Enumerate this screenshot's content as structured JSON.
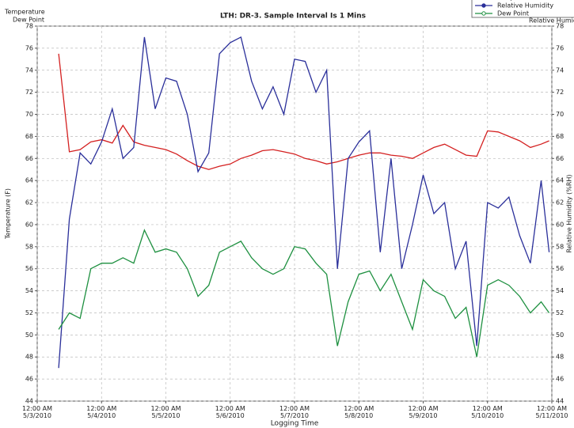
{
  "chart_data": {
    "type": "line",
    "title": "LTH: DR-3.  Sample Interval Is 1 Mins",
    "x_label": "Logging Time",
    "y_label": "Temperature (F)",
    "y2_label": "Relative Humidity (%RH)",
    "grid": true,
    "legend": "top-right",
    "x": [
      "2010-05-03 08:00",
      "2010-05-03 12:00",
      "2010-05-03 16:00",
      "2010-05-03 20:00",
      "2010-05-04 00:00",
      "2010-05-04 04:00",
      "2010-05-04 08:00",
      "2010-05-04 12:00",
      "2010-05-04 16:00",
      "2010-05-04 20:00",
      "2010-05-05 00:00",
      "2010-05-05 04:00",
      "2010-05-05 08:00",
      "2010-05-05 12:00",
      "2010-05-05 16:00",
      "2010-05-05 20:00",
      "2010-05-06 00:00",
      "2010-05-06 04:00",
      "2010-05-06 08:00",
      "2010-05-06 12:00",
      "2010-05-06 16:00",
      "2010-05-06 20:00",
      "2010-05-07 00:00",
      "2010-05-07 04:00",
      "2010-05-07 08:00",
      "2010-05-07 12:00",
      "2010-05-07 16:00",
      "2010-05-07 20:00",
      "2010-05-08 00:00",
      "2010-05-08 04:00",
      "2010-05-08 08:00",
      "2010-05-08 12:00",
      "2010-05-08 16:00",
      "2010-05-08 20:00",
      "2010-05-09 00:00",
      "2010-05-09 04:00",
      "2010-05-09 08:00",
      "2010-05-09 12:00",
      "2010-05-09 16:00",
      "2010-05-09 20:00",
      "2010-05-10 00:00",
      "2010-05-10 04:00",
      "2010-05-10 08:00",
      "2010-05-10 12:00",
      "2010-05-10 16:00",
      "2010-05-10 20:00",
      "2010-05-10 23:00"
    ],
    "xlim": [
      "2010-05-03 00:00",
      "2010-05-11 00:00"
    ],
    "xticks": [
      {
        "value": "2010-05-03 00:00",
        "label": "12:00 AM\n5/3/2010"
      },
      {
        "value": "2010-05-04 00:00",
        "label": "12:00 AM\n5/4/2010"
      },
      {
        "value": "2010-05-05 00:00",
        "label": "12:00 AM\n5/5/2010"
      },
      {
        "value": "2010-05-06 00:00",
        "label": "12:00 AM\n5/6/2010"
      },
      {
        "value": "2010-05-07 00:00",
        "label": "12:00 AM\n5/7/2010"
      },
      {
        "value": "2010-05-08 00:00",
        "label": "12:00 AM\n5/8/2010"
      },
      {
        "value": "2010-05-09 00:00",
        "label": "12:00 AM\n5/9/2010"
      },
      {
        "value": "2010-05-10 00:00",
        "label": "12:00 AM\n5/10/2010"
      },
      {
        "value": "2010-05-11 00:00",
        "label": "12:00 AM\n5/11/2010"
      }
    ],
    "ylim": [
      44,
      78
    ],
    "yticks": [
      44,
      46,
      48,
      50,
      52,
      54,
      56,
      58,
      60,
      62,
      64,
      66,
      68,
      70,
      72,
      74,
      76,
      78
    ],
    "y2lim": [
      44,
      78
    ],
    "y2ticks": [
      44,
      46,
      48,
      50,
      52,
      54,
      56,
      58,
      60,
      62,
      64,
      66,
      68,
      70,
      72,
      74,
      76,
      78
    ],
    "series": [
      {
        "name": "Temperature",
        "color": "#d42020",
        "values": [
          75.5,
          66.6,
          66.8,
          67.5,
          67.7,
          67.4,
          69.0,
          67.5,
          67.2,
          67.0,
          66.8,
          66.4,
          65.8,
          65.3,
          65.0,
          65.3,
          65.5,
          66.0,
          66.3,
          66.7,
          66.8,
          66.6,
          66.4,
          66.0,
          65.8,
          65.5,
          65.7,
          66.0,
          66.3,
          66.5,
          66.5,
          66.3,
          66.2,
          66.0,
          66.5,
          67.0,
          67.3,
          66.8,
          66.3,
          66.2,
          68.5,
          68.4,
          68.0,
          67.6,
          67.0,
          67.3,
          67.6
        ]
      },
      {
        "name": "Relative Humidity",
        "color": "#2a2f9a",
        "axis": "y2",
        "values": [
          47.0,
          60.5,
          66.5,
          65.5,
          67.5,
          70.5,
          66.0,
          67.0,
          77.0,
          70.5,
          73.3,
          73.0,
          70.0,
          64.8,
          66.5,
          75.5,
          76.5,
          77.0,
          73.0,
          70.5,
          72.5,
          70.0,
          75.0,
          74.8,
          72.0,
          74.0,
          56.0,
          66.0,
          67.5,
          68.5,
          57.5,
          66.0,
          56.0,
          60.0,
          64.5,
          61.0,
          62.0,
          56.0,
          58.5,
          49.0,
          62.0,
          61.5,
          62.5,
          59.0,
          56.5,
          64.0,
          57.5
        ]
      },
      {
        "name": "Dew Point",
        "color": "#1e9040",
        "values": [
          50.5,
          52.0,
          51.5,
          56.0,
          56.5,
          56.5,
          57.0,
          56.5,
          59.5,
          57.5,
          57.8,
          57.5,
          56.0,
          53.5,
          54.5,
          57.5,
          58.0,
          58.5,
          57.0,
          56.0,
          55.5,
          56.0,
          58.0,
          57.8,
          56.5,
          55.5,
          49.0,
          53.0,
          55.5,
          55.8,
          54.0,
          55.5,
          53.0,
          50.5,
          55.0,
          54.0,
          53.5,
          51.5,
          52.5,
          48.0,
          54.5,
          55.0,
          54.5,
          53.5,
          52.0,
          53.0,
          52.0
        ]
      }
    ]
  }
}
